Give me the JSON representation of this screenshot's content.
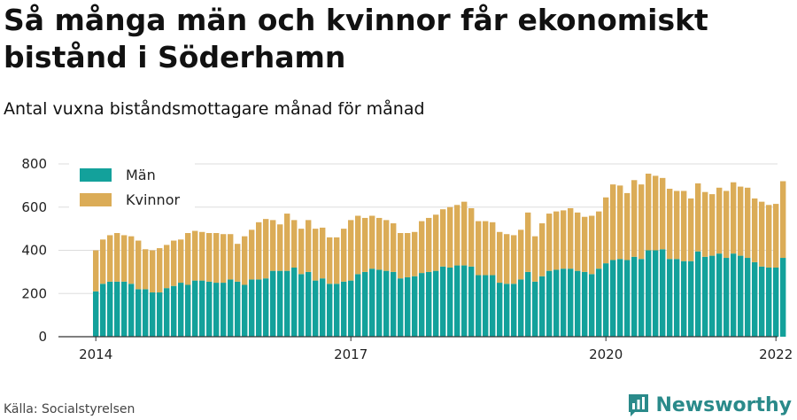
{
  "title": "Så många män och kvinnor får ekonomiskt bistånd i Söderhamn",
  "subtitle": "Antal vuxna biståndsmottagare månad för månad",
  "source": "Källa: Socialstyrelsen",
  "brand": "Newsworthy",
  "colors": {
    "man": "#13a19b",
    "kvinnor": "#dbac57",
    "grid": "#dddddd",
    "axis": "#333333",
    "brand": "#2a8a8a"
  },
  "chart_data": {
    "type": "bar",
    "stacked": true,
    "x_start": "2014-01",
    "x_ticks": [
      "2014",
      "2017",
      "2020",
      "2022"
    ],
    "y_ticks": [
      0,
      200,
      400,
      600,
      800
    ],
    "ylim": [
      0,
      800
    ],
    "grid": true,
    "legend_position": "top-left",
    "series": [
      {
        "name": "Män",
        "color": "#13a19b",
        "values": [
          210,
          245,
          255,
          255,
          255,
          245,
          220,
          220,
          205,
          205,
          225,
          235,
          250,
          240,
          260,
          260,
          255,
          250,
          250,
          265,
          255,
          240,
          265,
          265,
          270,
          305,
          305,
          305,
          320,
          290,
          300,
          260,
          270,
          245,
          245,
          255,
          260,
          290,
          300,
          315,
          310,
          305,
          300,
          270,
          275,
          280,
          295,
          300,
          305,
          325,
          320,
          330,
          330,
          325,
          285,
          285,
          285,
          250,
          245,
          245,
          265,
          300,
          255,
          280,
          305,
          310,
          315,
          315,
          305,
          300,
          290,
          315,
          340,
          355,
          360,
          355,
          370,
          360,
          400,
          400,
          405,
          360,
          360,
          350,
          350,
          395,
          370,
          375,
          385,
          365,
          385,
          375,
          365,
          345,
          325,
          320,
          320,
          365
        ]
      },
      {
        "name": "Kvinnor",
        "color": "#dbac57",
        "values": [
          190,
          205,
          215,
          225,
          215,
          220,
          225,
          185,
          195,
          205,
          200,
          210,
          200,
          240,
          230,
          225,
          225,
          230,
          225,
          210,
          175,
          225,
          230,
          265,
          275,
          235,
          215,
          265,
          220,
          210,
          240,
          240,
          235,
          215,
          215,
          245,
          280,
          270,
          250,
          245,
          240,
          235,
          225,
          210,
          205,
          205,
          240,
          250,
          260,
          265,
          280,
          280,
          295,
          270,
          250,
          250,
          245,
          235,
          230,
          225,
          230,
          275,
          210,
          245,
          265,
          270,
          270,
          280,
          270,
          255,
          270,
          265,
          305,
          350,
          340,
          310,
          355,
          345,
          355,
          345,
          330,
          325,
          315,
          325,
          290,
          315,
          300,
          285,
          305,
          310,
          330,
          320,
          325,
          295,
          300,
          290,
          295,
          355
        ]
      }
    ]
  }
}
